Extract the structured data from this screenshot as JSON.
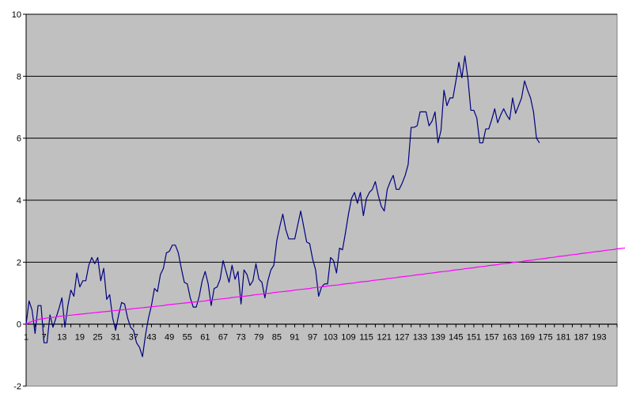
{
  "chart_data": {
    "type": "line",
    "title": "",
    "xlabel": "",
    "ylabel": "",
    "ylim": [
      -2,
      10
    ],
    "y_ticks": [
      -2,
      0,
      2,
      4,
      6,
      8,
      10
    ],
    "y_tick_labels": [
      "-2",
      "0",
      "2",
      "4",
      "6",
      "8",
      "10"
    ],
    "x_range": [
      1,
      199
    ],
    "x_tick_labels": [
      "1",
      "7",
      "13",
      "19",
      "25",
      "31",
      "37",
      "43",
      "49",
      "55",
      "61",
      "67",
      "73",
      "79",
      "85",
      "91",
      "97",
      "103",
      "109",
      "115",
      "121",
      "127",
      "133",
      "139",
      "145",
      "151",
      "157",
      "163",
      "169",
      "175",
      "181",
      "187",
      "193"
    ],
    "grid": "horizontal-major",
    "legend": "none",
    "plot_background": "#c0c0c0",
    "series": [
      {
        "color": "#000080",
        "x_start": 1,
        "values": [
          0.0,
          0.75,
          0.45,
          -0.3,
          0.6,
          0.6,
          -0.6,
          -0.6,
          0.3,
          -0.1,
          0.2,
          0.5,
          0.85,
          -0.1,
          0.6,
          1.1,
          0.9,
          1.65,
          1.2,
          1.4,
          1.4,
          1.9,
          2.15,
          1.95,
          2.15,
          1.4,
          1.8,
          0.8,
          0.95,
          0.2,
          -0.2,
          0.3,
          0.7,
          0.65,
          0.2,
          -0.1,
          -0.2,
          -0.6,
          -0.75,
          -1.05,
          -0.35,
          0.2,
          0.6,
          1.15,
          1.05,
          1.6,
          1.8,
          2.3,
          2.35,
          2.55,
          2.55,
          2.3,
          1.8,
          1.35,
          1.3,
          0.85,
          0.55,
          0.55,
          0.9,
          1.4,
          1.7,
          1.3,
          0.6,
          1.15,
          1.2,
          1.45,
          2.05,
          1.7,
          1.35,
          1.9,
          1.45,
          1.7,
          0.65,
          1.75,
          1.6,
          1.25,
          1.4,
          1.95,
          1.45,
          1.35,
          0.85,
          1.4,
          1.75,
          1.9,
          2.7,
          3.15,
          3.55,
          3.05,
          2.75,
          2.75,
          2.75,
          3.2,
          3.65,
          3.15,
          2.65,
          2.6,
          2.1,
          1.75,
          0.9,
          1.2,
          1.3,
          1.3,
          2.15,
          2.05,
          1.65,
          2.45,
          2.4,
          2.95,
          3.55,
          4.05,
          4.25,
          3.9,
          4.25,
          3.5,
          4.05,
          4.25,
          4.35,
          4.6,
          4.15,
          3.8,
          3.65,
          4.35,
          4.6,
          4.8,
          4.35,
          4.35,
          4.55,
          4.8,
          5.15,
          6.35,
          6.35,
          6.4,
          6.85,
          6.85,
          6.85,
          6.4,
          6.55,
          6.85,
          5.85,
          6.25,
          7.55,
          7.05,
          7.3,
          7.3,
          7.85,
          8.45,
          7.95,
          8.65,
          7.95,
          6.9,
          6.9,
          6.65,
          5.85,
          5.85,
          6.3,
          6.3,
          6.6,
          6.95,
          6.5,
          6.75,
          6.95,
          6.75,
          6.6,
          7.3,
          6.8,
          7.05,
          7.3,
          7.85,
          7.55,
          7.3,
          6.85,
          6.0,
          5.85
        ]
      },
      {
        "color": "#ff00ff",
        "x_start": 1,
        "values": [
          0.0,
          0.05,
          0.09,
          0.12,
          0.15,
          0.17,
          0.18,
          0.2,
          0.21,
          0.22,
          0.23,
          0.25,
          0.26,
          0.27,
          0.28,
          0.29,
          0.3,
          0.31,
          0.32,
          0.33,
          0.34,
          0.35,
          0.36,
          0.37,
          0.38,
          0.39,
          0.4,
          0.41,
          0.42,
          0.43,
          0.44,
          0.45,
          0.46,
          0.47,
          0.48,
          0.49,
          0.5,
          0.51,
          0.52,
          0.53,
          0.54,
          0.55,
          0.56,
          0.57,
          0.58,
          0.59,
          0.6,
          0.62,
          0.63,
          0.64,
          0.65,
          0.66,
          0.67,
          0.68,
          0.69,
          0.7,
          0.71,
          0.72,
          0.73,
          0.74,
          0.75,
          0.77,
          0.78,
          0.79,
          0.8,
          0.81,
          0.82,
          0.83,
          0.84,
          0.86,
          0.87,
          0.88,
          0.89,
          0.9,
          0.91,
          0.92,
          0.94,
          0.95,
          0.96,
          0.97,
          0.98,
          0.99,
          1.0,
          1.02,
          1.03,
          1.04,
          1.05,
          1.06,
          1.07,
          1.08,
          1.1,
          1.11,
          1.12,
          1.13,
          1.14,
          1.15,
          1.17,
          1.18,
          1.19,
          1.2,
          1.21,
          1.23,
          1.24,
          1.25,
          1.26,
          1.27,
          1.29,
          1.3,
          1.31,
          1.32,
          1.33,
          1.35,
          1.36,
          1.37,
          1.38,
          1.39,
          1.41,
          1.42,
          1.43,
          1.44,
          1.45,
          1.47,
          1.48,
          1.49,
          1.5,
          1.52,
          1.53,
          1.54,
          1.55,
          1.56,
          1.58,
          1.59,
          1.6,
          1.61,
          1.63,
          1.64,
          1.65,
          1.66,
          1.68,
          1.69,
          1.7,
          1.71,
          1.72,
          1.74,
          1.75,
          1.76,
          1.77,
          1.79,
          1.8,
          1.81,
          1.82,
          1.84,
          1.85,
          1.86,
          1.87,
          1.89,
          1.9,
          1.91,
          1.92,
          1.94,
          1.95,
          1.96,
          1.97,
          1.99,
          2.0,
          2.01,
          2.02,
          2.04,
          2.05,
          2.06,
          2.07,
          2.09,
          2.1,
          2.11,
          2.12,
          2.14,
          2.15,
          2.16,
          2.18,
          2.19,
          2.2,
          2.21,
          2.23,
          2.24,
          2.25,
          2.26,
          2.28,
          2.29,
          2.3,
          2.31,
          2.33,
          2.34,
          2.35,
          2.36,
          2.38,
          2.39,
          2.4,
          2.41,
          2.43,
          2.44,
          2.45,
          2.46,
          2.48,
          2.49,
          2.5,
          2.51,
          2.53,
          2.54,
          2.55,
          2.57,
          2.58,
          2.59,
          2.6,
          2.62,
          2.63,
          2.64,
          2.65,
          2.67,
          2.68,
          2.69,
          2.7,
          2.72,
          2.73,
          2.74,
          2.75
        ]
      }
    ]
  }
}
